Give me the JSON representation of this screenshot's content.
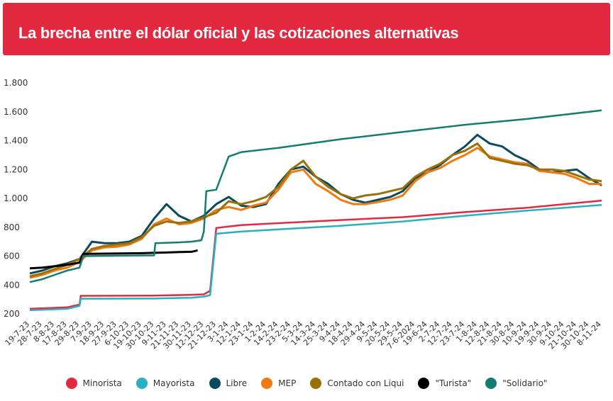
{
  "title": "La brecha entre el dólar oficial y las cotizaciones alternativas",
  "chart_data": {
    "type": "line",
    "ylim": [
      200,
      1800
    ],
    "yticks": [
      "200",
      "400",
      "600",
      "800",
      "1.000",
      "1.200",
      "1.400",
      "1.600",
      "1.800"
    ],
    "ytick_values": [
      200,
      400,
      600,
      800,
      1000,
      1200,
      1400,
      1600,
      1800
    ],
    "x_tick_labels": [
      "19-7-23",
      "28-7-23",
      "8-8-23",
      "17-8-23",
      "29-8-23",
      "7-9-23",
      "18-9-23",
      "27-9-23",
      "6-10-23",
      "19-10-23",
      "30-10-23",
      "9-11-23",
      "21-11-23",
      "30-11-23",
      "12-12-23",
      "21-12-23",
      "3-1-24",
      "12-1-24",
      "23-1-24",
      "1-2-24",
      "14-2-24",
      "23-2-24",
      "5-3-24",
      "14-3-24",
      "25-3-24",
      "9-4-24",
      "18-4-24",
      "29-4-24",
      "9-5-24",
      "20-5-24",
      "29-5-24",
      "7-6-2024",
      "19-6-24",
      "2-7-24",
      "12-7-24",
      "23-7-24",
      "1-8-24",
      "12-8-24",
      "21-8-24",
      "30-8-24",
      "10-9-24",
      "19-9-24",
      "30-9-24",
      "9-10-24",
      "21-10-24",
      "30-10-24",
      "8-11-24"
    ],
    "grid": false,
    "legend_position": "bottom",
    "series": [
      {
        "name": "Minorista",
        "color": "#e3293f",
        "points": [
          [
            0,
            235
          ],
          [
            3,
            245
          ],
          [
            4,
            265
          ],
          [
            4.1,
            325
          ],
          [
            10,
            326
          ],
          [
            13,
            332
          ],
          [
            14,
            335
          ],
          [
            14.5,
            360
          ],
          [
            15,
            795
          ],
          [
            17,
            815
          ],
          [
            20,
            828
          ],
          [
            25,
            850
          ],
          [
            30,
            870
          ],
          [
            35,
            905
          ],
          [
            40,
            935
          ],
          [
            46,
            985
          ]
        ]
      },
      {
        "name": "Mayorista",
        "color": "#2bb0c0",
        "points": [
          [
            0,
            225
          ],
          [
            3,
            235
          ],
          [
            4,
            255
          ],
          [
            4.1,
            305
          ],
          [
            10,
            306
          ],
          [
            13,
            312
          ],
          [
            14,
            320
          ],
          [
            14.5,
            330
          ],
          [
            15,
            755
          ],
          [
            17,
            770
          ],
          [
            20,
            785
          ],
          [
            25,
            810
          ],
          [
            30,
            840
          ],
          [
            35,
            880
          ],
          [
            40,
            915
          ],
          [
            46,
            955
          ]
        ]
      },
      {
        "name": "Libre",
        "color": "#0b4a5e",
        "points": [
          [
            0,
            480
          ],
          [
            1,
            500
          ],
          [
            2,
            530
          ],
          [
            3,
            550
          ],
          [
            4,
            580
          ],
          [
            5,
            700
          ],
          [
            6,
            690
          ],
          [
            7,
            690
          ],
          [
            8,
            700
          ],
          [
            9,
            740
          ],
          [
            10,
            860
          ],
          [
            11,
            960
          ],
          [
            12,
            880
          ],
          [
            13,
            840
          ],
          [
            14,
            880
          ],
          [
            15,
            960
          ],
          [
            16,
            1010
          ],
          [
            17,
            950
          ],
          [
            18,
            940
          ],
          [
            19,
            960
          ],
          [
            20,
            1100
          ],
          [
            21,
            1200
          ],
          [
            22,
            1220
          ],
          [
            23,
            1150
          ],
          [
            24,
            1100
          ],
          [
            25,
            1030
          ],
          [
            26,
            990
          ],
          [
            27,
            970
          ],
          [
            28,
            990
          ],
          [
            29,
            1010
          ],
          [
            30,
            1050
          ],
          [
            31,
            1140
          ],
          [
            32,
            1180
          ],
          [
            33,
            1230
          ],
          [
            34,
            1300
          ],
          [
            35,
            1360
          ],
          [
            36,
            1440
          ],
          [
            37,
            1380
          ],
          [
            38,
            1360
          ],
          [
            39,
            1300
          ],
          [
            40,
            1260
          ],
          [
            41,
            1200
          ],
          [
            42,
            1180
          ],
          [
            43,
            1190
          ],
          [
            44,
            1200
          ],
          [
            45,
            1140
          ],
          [
            46,
            1090
          ]
        ]
      },
      {
        "name": "MEP",
        "color": "#f07a10",
        "points": [
          [
            0,
            450
          ],
          [
            1,
            470
          ],
          [
            2,
            500
          ],
          [
            3,
            520
          ],
          [
            4,
            560
          ],
          [
            5,
            640
          ],
          [
            6,
            660
          ],
          [
            7,
            665
          ],
          [
            8,
            680
          ],
          [
            9,
            720
          ],
          [
            10,
            820
          ],
          [
            11,
            860
          ],
          [
            12,
            820
          ],
          [
            13,
            830
          ],
          [
            14,
            860
          ],
          [
            15,
            920
          ],
          [
            16,
            940
          ],
          [
            17,
            920
          ],
          [
            18,
            950
          ],
          [
            19,
            970
          ],
          [
            20,
            1060
          ],
          [
            21,
            1180
          ],
          [
            22,
            1200
          ],
          [
            23,
            1100
          ],
          [
            24,
            1050
          ],
          [
            25,
            990
          ],
          [
            26,
            960
          ],
          [
            27,
            960
          ],
          [
            28,
            975
          ],
          [
            29,
            990
          ],
          [
            30,
            1020
          ],
          [
            31,
            1120
          ],
          [
            32,
            1180
          ],
          [
            33,
            1210
          ],
          [
            34,
            1260
          ],
          [
            35,
            1300
          ],
          [
            36,
            1350
          ],
          [
            37,
            1290
          ],
          [
            38,
            1270
          ],
          [
            39,
            1250
          ],
          [
            40,
            1240
          ],
          [
            41,
            1190
          ],
          [
            42,
            1180
          ],
          [
            43,
            1170
          ],
          [
            44,
            1140
          ],
          [
            45,
            1100
          ],
          [
            46,
            1100
          ]
        ]
      },
      {
        "name": "Contado con Liqui",
        "color": "#9a7108",
        "points": [
          [
            0,
            460
          ],
          [
            1,
            480
          ],
          [
            2,
            510
          ],
          [
            3,
            540
          ],
          [
            4,
            580
          ],
          [
            5,
            650
          ],
          [
            6,
            670
          ],
          [
            7,
            680
          ],
          [
            8,
            690
          ],
          [
            9,
            730
          ],
          [
            10,
            810
          ],
          [
            11,
            840
          ],
          [
            12,
            830
          ],
          [
            13,
            840
          ],
          [
            14,
            870
          ],
          [
            15,
            900
          ],
          [
            16,
            980
          ],
          [
            17,
            960
          ],
          [
            18,
            980
          ],
          [
            19,
            1010
          ],
          [
            20,
            1080
          ],
          [
            21,
            1200
          ],
          [
            22,
            1260
          ],
          [
            23,
            1150
          ],
          [
            24,
            1080
          ],
          [
            25,
            1030
          ],
          [
            26,
            1000
          ],
          [
            27,
            1020
          ],
          [
            28,
            1030
          ],
          [
            29,
            1050
          ],
          [
            30,
            1070
          ],
          [
            31,
            1150
          ],
          [
            32,
            1200
          ],
          [
            33,
            1240
          ],
          [
            34,
            1300
          ],
          [
            35,
            1330
          ],
          [
            36,
            1380
          ],
          [
            37,
            1280
          ],
          [
            38,
            1260
          ],
          [
            39,
            1240
          ],
          [
            40,
            1230
          ],
          [
            41,
            1200
          ],
          [
            42,
            1200
          ],
          [
            43,
            1190
          ],
          [
            44,
            1160
          ],
          [
            45,
            1130
          ],
          [
            46,
            1120
          ]
        ]
      },
      {
        "name": "\"Turista\"",
        "color": "#000000",
        "points": [
          [
            0,
            515
          ],
          [
            1,
            520
          ],
          [
            2,
            530
          ],
          [
            3,
            540
          ],
          [
            4,
            555
          ],
          [
            4.3,
            615
          ],
          [
            9,
            620
          ],
          [
            11,
            625
          ],
          [
            12,
            628
          ],
          [
            13,
            630
          ],
          [
            13.5,
            640
          ]
        ]
      },
      {
        "name": "\"Solidario\"",
        "color": "#137d72",
        "points": [
          [
            0,
            420
          ],
          [
            1,
            440
          ],
          [
            2,
            470
          ],
          [
            3,
            500
          ],
          [
            4,
            520
          ],
          [
            4.3,
            600
          ],
          [
            10,
            605
          ],
          [
            10.1,
            690
          ],
          [
            12,
            695
          ],
          [
            13,
            700
          ],
          [
            13.8,
            710
          ],
          [
            14,
            770
          ],
          [
            14.2,
            1050
          ],
          [
            15,
            1060
          ],
          [
            16,
            1290
          ],
          [
            17,
            1320
          ],
          [
            20,
            1350
          ],
          [
            25,
            1410
          ],
          [
            30,
            1460
          ],
          [
            35,
            1510
          ],
          [
            40,
            1550
          ],
          [
            46,
            1610
          ]
        ]
      }
    ]
  },
  "legend": {
    "items": [
      {
        "label": "Minorista",
        "color": "#e3293f"
      },
      {
        "label": "Mayorista",
        "color": "#2bb0c0"
      },
      {
        "label": "Libre",
        "color": "#0b4a5e"
      },
      {
        "label": "MEP",
        "color": "#f07a10"
      },
      {
        "label": "Contado con Liqui",
        "color": "#9a7108"
      },
      {
        "label": "\"Turista\"",
        "color": "#000000"
      },
      {
        "label": "\"Solidario\"",
        "color": "#137d72"
      }
    ]
  }
}
